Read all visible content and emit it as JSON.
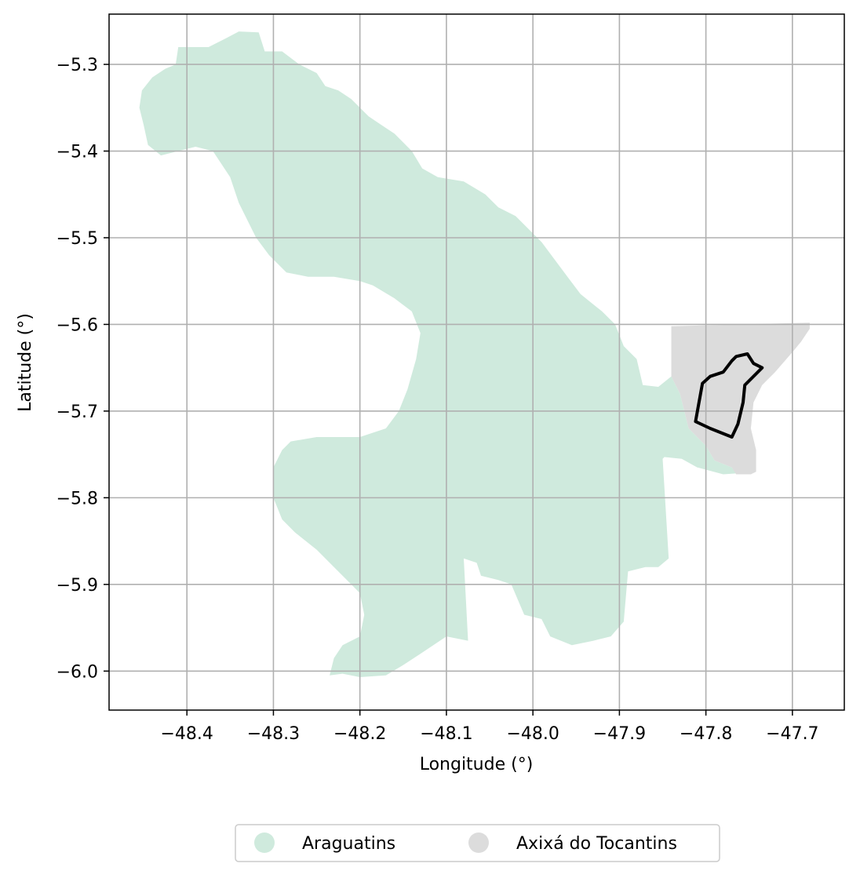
{
  "chart_data": {
    "type": "map",
    "xlabel": "Longitude (°)",
    "ylabel": "Latitude (°)",
    "xlim": [
      -48.49,
      -47.64
    ],
    "ylim": [
      -6.045,
      -5.242
    ],
    "x_ticks": [
      {
        "value": -48.4,
        "label": "−48.4"
      },
      {
        "value": -48.3,
        "label": "−48.3"
      },
      {
        "value": -48.2,
        "label": "−48.2"
      },
      {
        "value": -48.1,
        "label": "−48.1"
      },
      {
        "value": -48.0,
        "label": "−48.0"
      },
      {
        "value": -47.9,
        "label": "−47.9"
      },
      {
        "value": -47.8,
        "label": "−47.8"
      },
      {
        "value": -47.7,
        "label": "−47.7"
      }
    ],
    "y_ticks": [
      {
        "value": -5.3,
        "label": "−5.3"
      },
      {
        "value": -5.4,
        "label": "−5.4"
      },
      {
        "value": -5.5,
        "label": "−5.5"
      },
      {
        "value": -5.6,
        "label": "−5.6"
      },
      {
        "value": -5.7,
        "label": "−5.7"
      },
      {
        "value": -5.8,
        "label": "−5.8"
      },
      {
        "value": -5.9,
        "label": "−5.9"
      },
      {
        "value": -6.0,
        "label": "−6.0"
      }
    ],
    "grid": true,
    "legend_position": "bottom-center",
    "regions": [
      {
        "name": "Araguatins",
        "color": "#cfeadd",
        "coords": [
          [
            -48.41,
            -5.28
          ],
          [
            -48.375,
            -5.28
          ],
          [
            -48.355,
            -5.27
          ],
          [
            -48.34,
            -5.262
          ],
          [
            -48.317,
            -5.263
          ],
          [
            -48.31,
            -5.285
          ],
          [
            -48.29,
            -5.285
          ],
          [
            -48.27,
            -5.3
          ],
          [
            -48.25,
            -5.31
          ],
          [
            -48.24,
            -5.325
          ],
          [
            -48.225,
            -5.33
          ],
          [
            -48.21,
            -5.34
          ],
          [
            -48.2,
            -5.35
          ],
          [
            -48.19,
            -5.36
          ],
          [
            -48.175,
            -5.37
          ],
          [
            -48.16,
            -5.38
          ],
          [
            -48.14,
            -5.4
          ],
          [
            -48.128,
            -5.42
          ],
          [
            -48.11,
            -5.43
          ],
          [
            -48.08,
            -5.435
          ],
          [
            -48.055,
            -5.45
          ],
          [
            -48.04,
            -5.465
          ],
          [
            -48.02,
            -5.475
          ],
          [
            -48.005,
            -5.49
          ],
          [
            -47.99,
            -5.505
          ],
          [
            -47.975,
            -5.525
          ],
          [
            -47.96,
            -5.545
          ],
          [
            -47.945,
            -5.565
          ],
          [
            -47.92,
            -5.585
          ],
          [
            -47.905,
            -5.6
          ],
          [
            -47.895,
            -5.625
          ],
          [
            -47.88,
            -5.64
          ],
          [
            -47.873,
            -5.67
          ],
          [
            -47.855,
            -5.672
          ],
          [
            -47.84,
            -5.66
          ],
          [
            -47.83,
            -5.68
          ],
          [
            -47.82,
            -5.72
          ],
          [
            -47.8,
            -5.74
          ],
          [
            -47.79,
            -5.757
          ],
          [
            -47.77,
            -5.765
          ],
          [
            -47.765,
            -5.772
          ],
          [
            -47.78,
            -5.773
          ],
          [
            -47.81,
            -5.765
          ],
          [
            -47.828,
            -5.755
          ],
          [
            -47.848,
            -5.753
          ],
          [
            -47.85,
            -5.755
          ],
          [
            -47.843,
            -5.87
          ],
          [
            -47.855,
            -5.88
          ],
          [
            -47.87,
            -5.88
          ],
          [
            -47.89,
            -5.885
          ],
          [
            -47.895,
            -5.943
          ],
          [
            -47.91,
            -5.96
          ],
          [
            -47.93,
            -5.965
          ],
          [
            -47.955,
            -5.97
          ],
          [
            -47.98,
            -5.96
          ],
          [
            -47.99,
            -5.94
          ],
          [
            -48.01,
            -5.935
          ],
          [
            -48.025,
            -5.9
          ],
          [
            -48.04,
            -5.895
          ],
          [
            -48.06,
            -5.89
          ],
          [
            -48.065,
            -5.875
          ],
          [
            -48.08,
            -5.87
          ],
          [
            -48.075,
            -5.965
          ],
          [
            -48.1,
            -5.96
          ],
          [
            -48.13,
            -5.98
          ],
          [
            -48.15,
            -5.993
          ],
          [
            -48.17,
            -6.005
          ],
          [
            -48.2,
            -6.007
          ],
          [
            -48.22,
            -6.003
          ],
          [
            -48.235,
            -6.005
          ],
          [
            -48.23,
            -5.985
          ],
          [
            -48.22,
            -5.97
          ],
          [
            -48.2,
            -5.96
          ],
          [
            -48.195,
            -5.935
          ],
          [
            -48.2,
            -5.91
          ],
          [
            -48.23,
            -5.88
          ],
          [
            -48.25,
            -5.86
          ],
          [
            -48.275,
            -5.84
          ],
          [
            -48.29,
            -5.825
          ],
          [
            -48.3,
            -5.8
          ],
          [
            -48.3,
            -5.765
          ],
          [
            -48.29,
            -5.745
          ],
          [
            -48.28,
            -5.735
          ],
          [
            -48.25,
            -5.73
          ],
          [
            -48.2,
            -5.73
          ],
          [
            -48.17,
            -5.72
          ],
          [
            -48.155,
            -5.7
          ],
          [
            -48.145,
            -5.675
          ],
          [
            -48.135,
            -5.64
          ],
          [
            -48.13,
            -5.61
          ],
          [
            -48.14,
            -5.585
          ],
          [
            -48.16,
            -5.57
          ],
          [
            -48.185,
            -5.555
          ],
          [
            -48.2,
            -5.55
          ],
          [
            -48.23,
            -5.545
          ],
          [
            -48.26,
            -5.545
          ],
          [
            -48.285,
            -5.54
          ],
          [
            -48.305,
            -5.52
          ],
          [
            -48.32,
            -5.5
          ],
          [
            -48.33,
            -5.48
          ],
          [
            -48.34,
            -5.46
          ],
          [
            -48.35,
            -5.43
          ],
          [
            -48.37,
            -5.4
          ],
          [
            -48.39,
            -5.395
          ],
          [
            -48.41,
            -5.4
          ],
          [
            -48.43,
            -5.405
          ],
          [
            -48.445,
            -5.393
          ],
          [
            -48.45,
            -5.37
          ],
          [
            -48.455,
            -5.35
          ],
          [
            -48.452,
            -5.33
          ],
          [
            -48.44,
            -5.315
          ],
          [
            -48.425,
            -5.305
          ],
          [
            -48.413,
            -5.3
          ]
        ]
      },
      {
        "name": "Axixá do Tocantins",
        "color": "#dcdcdc",
        "coords": [
          [
            -47.84,
            -5.602
          ],
          [
            -47.68,
            -5.598
          ],
          [
            -47.68,
            -5.605
          ],
          [
            -47.69,
            -5.62
          ],
          [
            -47.7,
            -5.632
          ],
          [
            -47.72,
            -5.655
          ],
          [
            -47.735,
            -5.67
          ],
          [
            -47.745,
            -5.69
          ],
          [
            -47.748,
            -5.72
          ],
          [
            -47.742,
            -5.745
          ],
          [
            -47.742,
            -5.77
          ],
          [
            -47.748,
            -5.773
          ],
          [
            -47.765,
            -5.773
          ],
          [
            -47.77,
            -5.765
          ],
          [
            -47.79,
            -5.757
          ],
          [
            -47.8,
            -5.74
          ],
          [
            -47.82,
            -5.72
          ],
          [
            -47.83,
            -5.68
          ],
          [
            -47.84,
            -5.66
          ],
          [
            -47.84,
            -5.64
          ]
        ]
      }
    ],
    "highlight_outline": {
      "color": "#000000",
      "coords": [
        [
          -47.765,
          -5.637
        ],
        [
          -47.752,
          -5.634
        ],
        [
          -47.745,
          -5.645
        ],
        [
          -47.735,
          -5.65
        ],
        [
          -47.755,
          -5.67
        ],
        [
          -47.757,
          -5.69
        ],
        [
          -47.763,
          -5.715
        ],
        [
          -47.77,
          -5.73
        ],
        [
          -47.795,
          -5.72
        ],
        [
          -47.812,
          -5.712
        ],
        [
          -47.808,
          -5.69
        ],
        [
          -47.804,
          -5.668
        ],
        [
          -47.795,
          -5.66
        ],
        [
          -47.78,
          -5.655
        ],
        [
          -47.77,
          -5.642
        ]
      ]
    },
    "legend": [
      {
        "label": "Araguatins",
        "color": "#cfeadd"
      },
      {
        "label": "Axixá do Tocantins",
        "color": "#dcdcdc"
      }
    ]
  }
}
